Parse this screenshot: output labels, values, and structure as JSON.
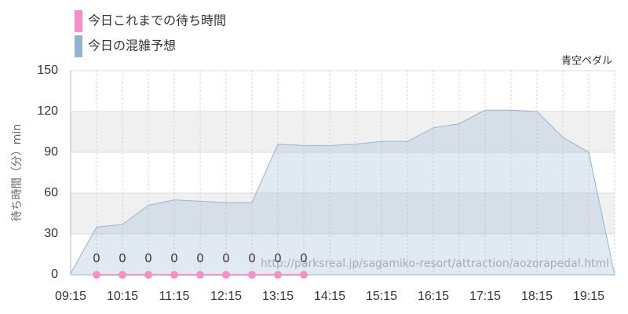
{
  "chart_data": {
    "type": "area",
    "subtitle": "青空ペダル",
    "y_label": "待ち時間（分）min",
    "watermark": "http://parksreal.jp/sagamiko-resort/attraction/aozorapedal.html",
    "categories": [
      "09:15",
      null,
      "10:15",
      null,
      "11:15",
      null,
      "12:15",
      null,
      "13:15",
      null,
      "14:15",
      null,
      "15:15",
      null,
      "16:15",
      null,
      "17:15",
      null,
      "18:15",
      null,
      "19:15",
      null
    ],
    "series": [
      {
        "name": "今日これまでの待ち時間",
        "color": "#f48fc8",
        "kind": "line",
        "values": [
          null,
          0,
          0,
          0,
          0,
          0,
          0,
          0,
          0,
          0,
          null,
          null,
          null,
          null,
          null,
          null,
          null,
          null,
          null,
          null,
          null,
          null
        ]
      },
      {
        "name": "今日の混雑予想",
        "color": "#92b4d2",
        "kind": "area",
        "values": [
          1,
          35,
          37,
          51,
          55,
          54,
          53,
          53,
          96,
          95,
          95,
          96,
          98,
          98,
          108,
          111,
          121,
          121,
          120,
          101,
          90,
          0
        ]
      }
    ],
    "ylim": [
      0,
      150
    ],
    "yticks": [
      0,
      30,
      60,
      90,
      120,
      150
    ],
    "grid": true
  }
}
